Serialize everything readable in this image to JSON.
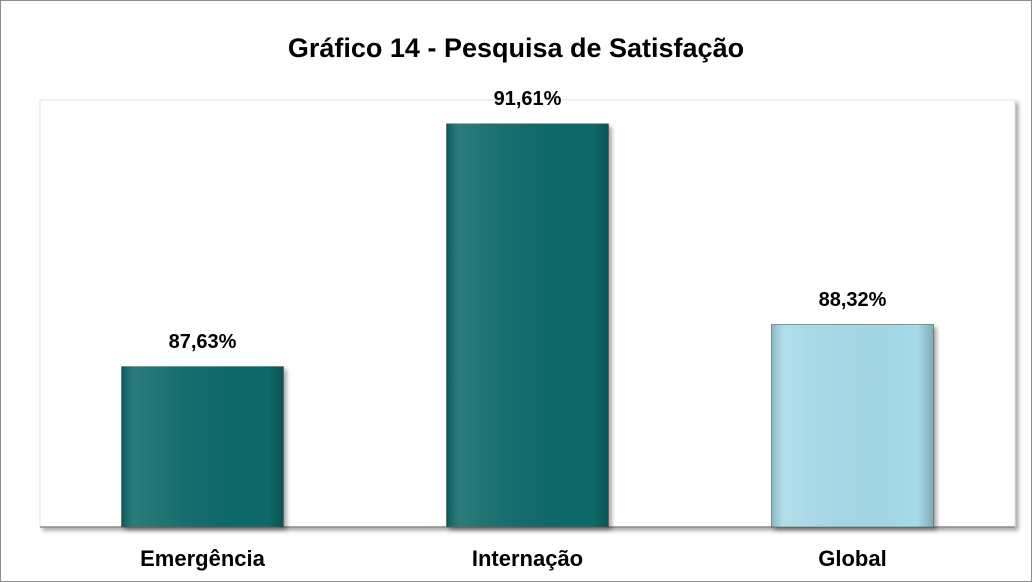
{
  "chart_data": {
    "type": "bar",
    "title": "Gráfico 14 - Pesquisa de Satisfação",
    "categories": [
      "Emergência",
      "Internação",
      "Global"
    ],
    "values": [
      87.63,
      91.61,
      88.32
    ],
    "value_labels": [
      "87,63%",
      "91,61%",
      "88,32%"
    ],
    "colors": [
      "#0a6b6b",
      "#0a6b6b",
      "#a6dbe9"
    ],
    "ylim": [
      85,
      92
    ]
  }
}
